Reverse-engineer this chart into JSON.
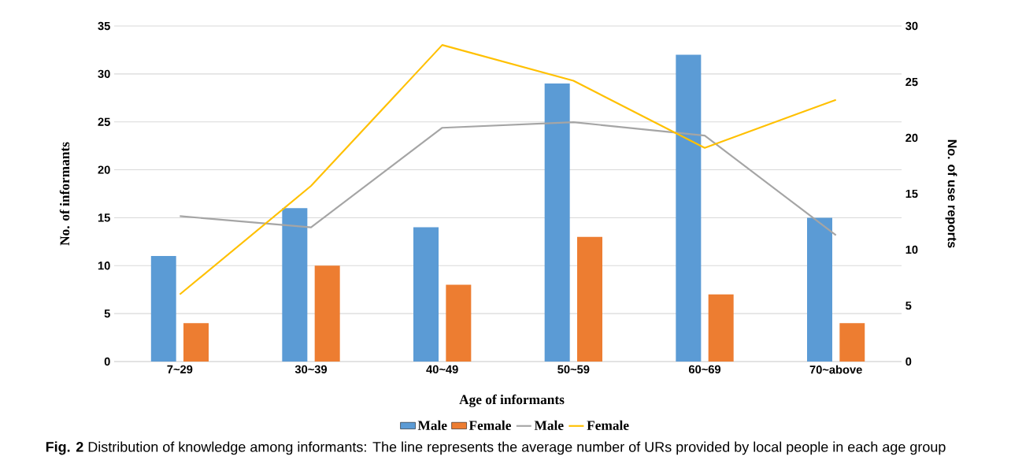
{
  "chart_data": {
    "type": "bar",
    "xlabel": "Age of informants",
    "ylabel": "No. of informants",
    "y2label": "No. of use reports",
    "categories": [
      "7~29",
      "30~39",
      "40~49",
      "50~59",
      "60~69",
      "70~above"
    ],
    "series": [
      {
        "name": "Male",
        "color": "#5b9bd5",
        "values": [
          11,
          16,
          14,
          29,
          32,
          15
        ]
      },
      {
        "name": "Female",
        "color": "#ed7d31",
        "values": [
          4,
          10,
          8,
          13,
          7,
          4
        ]
      },
      {
        "name": "Male",
        "type": "line",
        "axis": "y2",
        "color": "#a5a5a5",
        "values": [
          13.0,
          12.0,
          20.9,
          21.4,
          20.2,
          11.3
        ]
      },
      {
        "name": "Female",
        "type": "line",
        "axis": "y2",
        "color": "#ffc000",
        "values": [
          6.0,
          15.7,
          28.3,
          25.1,
          19.1,
          23.4
        ]
      }
    ],
    "ylim": [
      0,
      35
    ],
    "yticks": [
      0,
      5,
      10,
      15,
      20,
      25,
      30,
      35
    ],
    "y2lim": [
      0,
      30
    ],
    "y2ticks": [
      0,
      5,
      10,
      15,
      20,
      25,
      30
    ],
    "grid": "y",
    "legend": "bottom",
    "annotations": [
      "**Fig. 2**  Distribution of knowledge among informants: The line represents the average number of URs provided by local people in each age group"
    ]
  }
}
